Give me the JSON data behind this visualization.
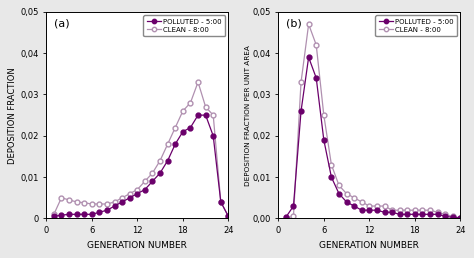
{
  "panel_a": {
    "label": "(a)",
    "ylabel": "DEPOSITION FRACTION",
    "xlabel": "GENERATION NUMBER",
    "ylim": [
      0,
      0.05
    ],
    "yticks": [
      0,
      0.01,
      0.02,
      0.03,
      0.04,
      0.05
    ],
    "ytick_labels": [
      "0",
      "0,01",
      "0,02",
      "0,03",
      "0,04",
      "0,05"
    ],
    "xticks": [
      0,
      6,
      12,
      18,
      24
    ],
    "polluted": {
      "x": [
        1,
        2,
        3,
        4,
        5,
        6,
        7,
        8,
        9,
        10,
        11,
        12,
        13,
        14,
        15,
        16,
        17,
        18,
        19,
        20,
        21,
        22,
        23,
        24
      ],
      "y": [
        0.0005,
        0.0008,
        0.001,
        0.001,
        0.001,
        0.001,
        0.0015,
        0.002,
        0.003,
        0.004,
        0.005,
        0.006,
        0.007,
        0.009,
        0.011,
        0.014,
        0.018,
        0.021,
        0.022,
        0.025,
        0.025,
        0.02,
        0.004,
        0.0005
      ]
    },
    "clean": {
      "x": [
        1,
        2,
        3,
        4,
        5,
        6,
        7,
        8,
        9,
        10,
        11,
        12,
        13,
        14,
        15,
        16,
        17,
        18,
        19,
        20,
        21,
        22,
        23,
        24
      ],
      "y": [
        0.001,
        0.005,
        0.0045,
        0.004,
        0.0038,
        0.0035,
        0.0035,
        0.0035,
        0.004,
        0.005,
        0.006,
        0.007,
        0.009,
        0.011,
        0.014,
        0.018,
        0.022,
        0.026,
        0.028,
        0.033,
        0.027,
        0.025,
        0.004,
        0.0005
      ]
    }
  },
  "panel_b": {
    "label": "(b)",
    "ylabel": "DEPOSITION FRACTION PER UNIT AREA",
    "xlabel": "GENERATION NUMBER",
    "ylim": [
      0,
      0.05
    ],
    "yticks": [
      0,
      0.01,
      0.02,
      0.03,
      0.04,
      0.05
    ],
    "ytick_labels": [
      "0,00",
      "0,01",
      "0,02",
      "0,03",
      "0,04",
      "0,05"
    ],
    "xticks": [
      0,
      6,
      12,
      18,
      24
    ],
    "polluted": {
      "x": [
        1,
        2,
        3,
        4,
        5,
        6,
        7,
        8,
        9,
        10,
        11,
        12,
        13,
        14,
        15,
        16,
        17,
        18,
        19,
        20,
        21,
        22,
        23,
        24
      ],
      "y": [
        0.0003,
        0.003,
        0.026,
        0.039,
        0.034,
        0.019,
        0.01,
        0.006,
        0.004,
        0.003,
        0.002,
        0.002,
        0.002,
        0.0015,
        0.0015,
        0.001,
        0.001,
        0.001,
        0.001,
        0.001,
        0.001,
        0.0005,
        0.0003,
        0.0001
      ]
    },
    "clean": {
      "x": [
        1,
        2,
        3,
        4,
        5,
        6,
        7,
        8,
        9,
        10,
        11,
        12,
        13,
        14,
        15,
        16,
        17,
        18,
        19,
        20,
        21,
        22,
        23,
        24
      ],
      "y": [
        0.0001,
        0.0005,
        0.033,
        0.047,
        0.042,
        0.025,
        0.013,
        0.008,
        0.006,
        0.005,
        0.004,
        0.003,
        0.003,
        0.003,
        0.002,
        0.002,
        0.002,
        0.002,
        0.002,
        0.002,
        0.0015,
        0.001,
        0.0005,
        0.0001
      ]
    }
  },
  "polluted_color": "#6B006B",
  "clean_color": "#B090B0",
  "fig_facecolor": "#E8E8E8",
  "plot_facecolor": "#FFFFFF",
  "legend_polluted": "POLLUTED - 5:00",
  "legend_clean": "CLEAN - 8:00",
  "figsize": [
    4.74,
    2.58
  ],
  "dpi": 100
}
